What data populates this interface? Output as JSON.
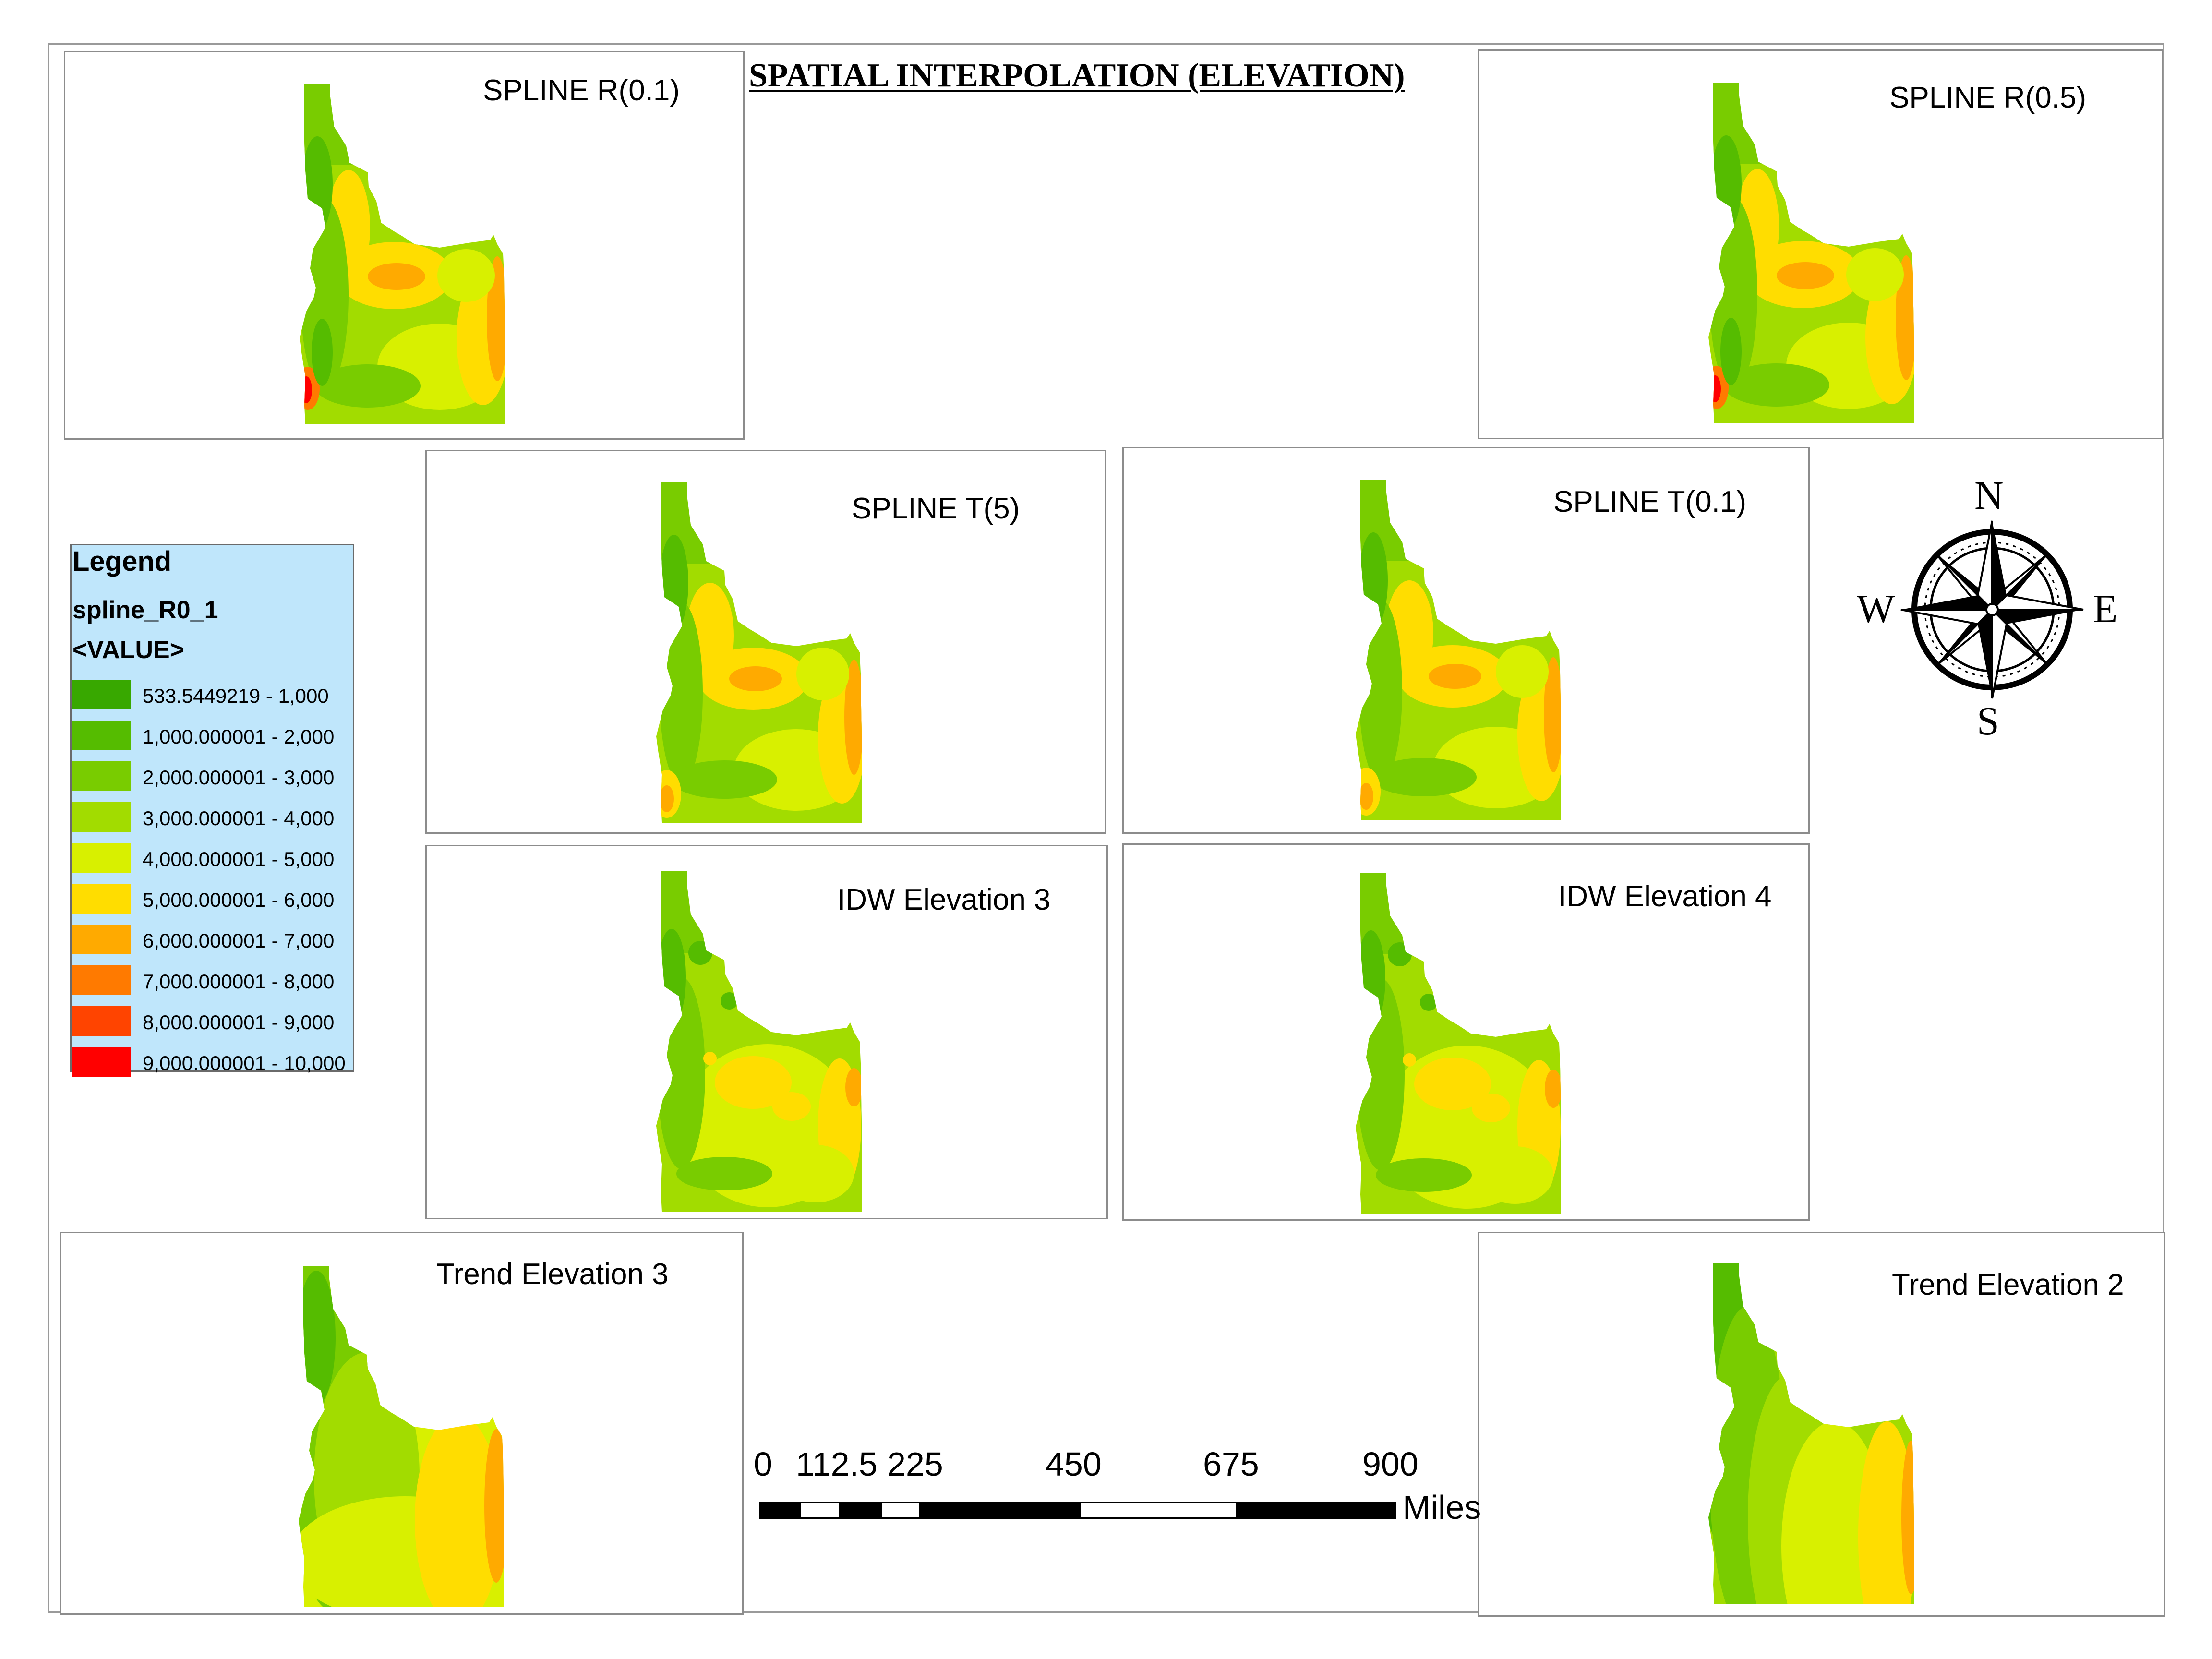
{
  "title": "SPATIAL INTERPOLATION (ELEVATION)",
  "palette": {
    "c1": "#38a800",
    "c2": "#55bc00",
    "c3": "#79cc00",
    "c4": "#a2dc00",
    "c5": "#d8f000",
    "c6": "#ffdd00",
    "c7": "#ffaa00",
    "c8": "#ff7a00",
    "c9": "#ff4400",
    "c10": "#ff0000"
  },
  "maps": [
    {
      "id": "spline-r01",
      "title": "SPLINE R(0.1)"
    },
    {
      "id": "spline-r05",
      "title": "SPLINE R(0.5)"
    },
    {
      "id": "spline-t5",
      "title": "SPLINE T(5)"
    },
    {
      "id": "spline-t01",
      "title": "SPLINE T(0.1)"
    },
    {
      "id": "idw-3",
      "title": "IDW Elevation 3"
    },
    {
      "id": "idw-4",
      "title": "IDW Elevation 4"
    },
    {
      "id": "trend-3",
      "title": "Trend Elevation 3"
    },
    {
      "id": "trend-2",
      "title": "Trend Elevation 2"
    }
  ],
  "legend": {
    "title": "Legend",
    "layer": "spline_R0_1",
    "field": "<VALUE>",
    "classes": [
      {
        "label": "533.5449219 - 1,000",
        "color": "#38a800"
      },
      {
        "label": "1,000.000001 - 2,000",
        "color": "#55bc00"
      },
      {
        "label": "2,000.000001 - 3,000",
        "color": "#79cc00"
      },
      {
        "label": "3,000.000001 - 4,000",
        "color": "#a2dc00"
      },
      {
        "label": "4,000.000001 - 5,000",
        "color": "#d8f000"
      },
      {
        "label": "5,000.000001 - 6,000",
        "color": "#ffdd00"
      },
      {
        "label": "6,000.000001 - 7,000",
        "color": "#ffaa00"
      },
      {
        "label": "7,000.000001 - 8,000",
        "color": "#ff7a00"
      },
      {
        "label": "8,000.000001 - 9,000",
        "color": "#ff4400"
      },
      {
        "label": "9,000.000001 - 10,000",
        "color": "#ff0000"
      }
    ]
  },
  "compass": {
    "north": "N",
    "south": "S",
    "east": "E",
    "west": "W"
  },
  "scale_bar": {
    "ticks": [
      "0",
      "112.5",
      "225",
      "450",
      "675",
      "900"
    ],
    "unit": "Miles"
  }
}
